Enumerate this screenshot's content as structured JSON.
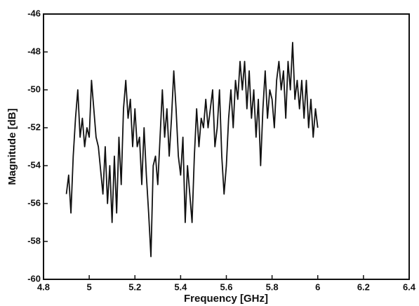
{
  "chart_data": {
    "type": "line",
    "x_label": "Frequency [GHz]",
    "y_label": "Magnitude [dB]",
    "x": [
      4.9,
      4.91,
      4.92,
      4.93,
      4.94,
      4.95,
      4.96,
      4.97,
      4.98,
      4.99,
      5.0,
      5.01,
      5.02,
      5.03,
      5.04,
      5.06,
      5.07,
      5.08,
      5.09,
      5.1,
      5.11,
      5.12,
      5.13,
      5.14,
      5.15,
      5.16,
      5.17,
      5.18,
      5.19,
      5.2,
      5.21,
      5.22,
      5.23,
      5.24,
      5.25,
      5.26,
      5.27,
      5.28,
      5.29,
      5.3,
      5.31,
      5.32,
      5.33,
      5.34,
      5.35,
      5.36,
      5.37,
      5.38,
      5.39,
      5.4,
      5.41,
      5.42,
      5.43,
      5.44,
      5.45,
      5.46,
      5.47,
      5.48,
      5.49,
      5.5,
      5.51,
      5.52,
      5.53,
      5.54,
      5.55,
      5.56,
      5.57,
      5.58,
      5.59,
      5.6,
      5.61,
      5.62,
      5.63,
      5.64,
      5.65,
      5.66,
      5.67,
      5.68,
      5.69,
      5.7,
      5.71,
      5.72,
      5.73,
      5.74,
      5.75,
      5.76,
      5.77,
      5.78,
      5.79,
      5.8,
      5.81,
      5.82,
      5.83,
      5.84,
      5.85,
      5.86,
      5.87,
      5.88,
      5.89,
      5.9,
      5.91,
      5.92,
      5.93,
      5.94,
      5.95,
      5.96,
      5.97,
      5.98,
      5.99,
      6.0
    ],
    "series": [
      {
        "name": "Magnitude",
        "color": "#111111",
        "values": [
          -55.5,
          -54.5,
          -56.5,
          -53.5,
          -51.5,
          -50,
          -52.5,
          -51.5,
          -53,
          -52,
          -52.5,
          -49.5,
          -51,
          -52.5,
          -53,
          -55.5,
          -53,
          -56,
          -54,
          -57,
          -53.5,
          -56.5,
          -52.5,
          -55,
          -51,
          -49.5,
          -51.5,
          -50.5,
          -53,
          -51,
          -53,
          -52.5,
          -55,
          -52,
          -54.5,
          -56.5,
          -58.8,
          -54,
          -53.5,
          -55,
          -52.5,
          -50,
          -52.5,
          -51,
          -53.5,
          -51.5,
          -49,
          -51,
          -53.5,
          -54.5,
          -52.5,
          -57,
          -54,
          -55.5,
          -57,
          -53.5,
          -51,
          -53,
          -51.5,
          -52,
          -50.5,
          -52,
          -51,
          -50,
          -53,
          -52,
          -50,
          -53.5,
          -55.5,
          -54,
          -51.5,
          -50,
          -52,
          -49.5,
          -50.5,
          -48.5,
          -50,
          -48.5,
          -51,
          -49,
          -51.5,
          -50,
          -52.5,
          -50.5,
          -54,
          -51,
          -49,
          -51.5,
          -50,
          -50.5,
          -52,
          -49.5,
          -48.5,
          -50,
          -49,
          -51.5,
          -48.5,
          -50,
          -47.5,
          -50.5,
          -49.5,
          -51,
          -49.5,
          -51.5,
          -49.5,
          -52,
          -50.5,
          -52.5,
          -51,
          -52
        ]
      }
    ],
    "xlim": [
      4.8,
      6.4
    ],
    "xticks": [
      4.8,
      5,
      5.2,
      5.4,
      5.6,
      5.8,
      6,
      6.2,
      6.4
    ],
    "ylim": [
      -60,
      -46
    ],
    "yticks": [
      -60,
      -58,
      -56,
      -54,
      -52,
      -50,
      -48,
      -46
    ],
    "grid": false
  }
}
